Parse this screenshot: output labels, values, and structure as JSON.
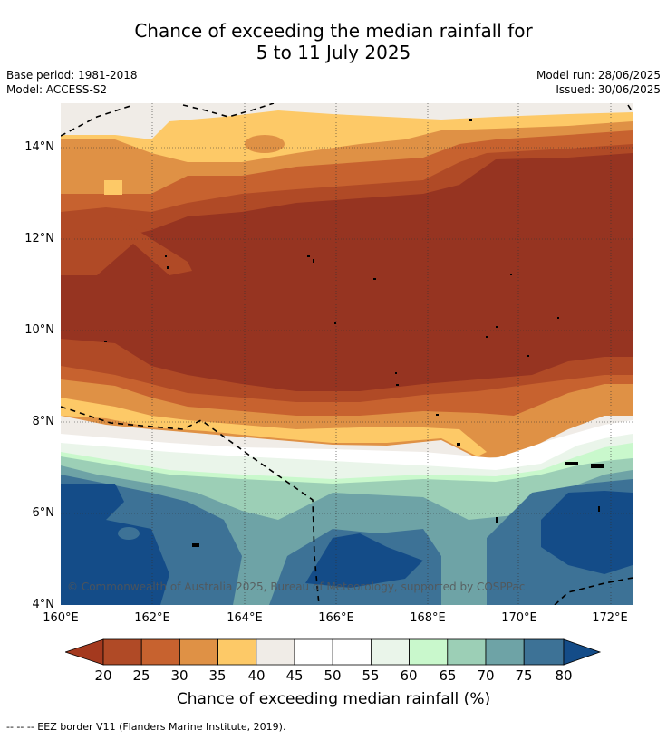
{
  "title_line1": "Chance of exceeding the median rainfall for",
  "title_line2": "5 to 11 July 2025",
  "base_period": "Base period: 1981-2018",
  "model": "Model: ACCESS-S2",
  "model_run": "Model run: 28/06/2025",
  "issued": "Issued: 30/06/2025",
  "y_ticks": [
    "14°N",
    "12°N",
    "10°N",
    "8°N",
    "6°N",
    "4°N"
  ],
  "x_ticks": [
    "160°E",
    "162°E",
    "164°E",
    "166°E",
    "168°E",
    "170°E",
    "172°E"
  ],
  "copyright": "© Commonwealth of Australia 2025, Bureau of Meteorology, supported by COSPPac",
  "colorbar_ticks": [
    "20",
    "25",
    "30",
    "35",
    "40",
    "45",
    "50",
    "55",
    "60",
    "65",
    "70",
    "75",
    "80"
  ],
  "colorbar_label": "Chance of exceeding median rainfall (%)",
  "eez_legend": "-- -- -- EEZ border V11 (Flanders Marine Institute, 2019).",
  "colors": {
    "below20": "#a4391e",
    "c20_25": "#b04a26",
    "c25_30": "#c7622f",
    "c30_35": "#df9145",
    "c35_40": "#fdc967",
    "c40_45": "#f0ece7",
    "c45_55": "#ffffff",
    "c55_60": "#eaf5ea",
    "c60_65": "#c9f8cc",
    "c65_70": "#9ccfb6",
    "c70_75": "#6ea3a6",
    "c75_80": "#3d7296",
    "above80": "#144c88",
    "deep": "#963421"
  }
}
